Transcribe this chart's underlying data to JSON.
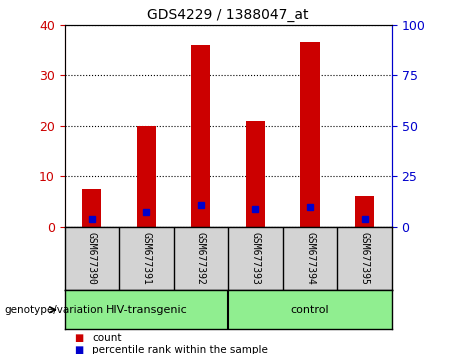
{
  "title": "GDS4229 / 1388047_at",
  "samples": [
    "GSM677390",
    "GSM677391",
    "GSM677392",
    "GSM677393",
    "GSM677394",
    "GSM677395"
  ],
  "count_values": [
    7.5,
    20,
    36,
    21,
    36.5,
    6
  ],
  "percentile_values": [
    3.5,
    7,
    10.5,
    8.5,
    9.5,
    3.5
  ],
  "groups": [
    {
      "label": "HIV-transgenic",
      "indices": [
        0,
        1,
        2
      ],
      "color": "#90EE90"
    },
    {
      "label": "control",
      "indices": [
        3,
        4,
        5
      ],
      "color": "#90EE90"
    }
  ],
  "group_label": "genotype/variation",
  "left_axis_color": "#CC0000",
  "right_axis_color": "#0000CC",
  "left_ylim": [
    0,
    40
  ],
  "right_ylim": [
    0,
    100
  ],
  "left_yticks": [
    0,
    10,
    20,
    30,
    40
  ],
  "right_yticks": [
    0,
    25,
    50,
    75,
    100
  ],
  "bar_color": "#CC0000",
  "dot_color": "#0000CC",
  "sample_bg_color": "#D3D3D3",
  "plot_bg_color": "#FFFFFF",
  "fig_bg_color": "#FFFFFF",
  "legend_count_color": "#CC0000",
  "legend_pct_color": "#0000CC",
  "bar_width": 0.35
}
